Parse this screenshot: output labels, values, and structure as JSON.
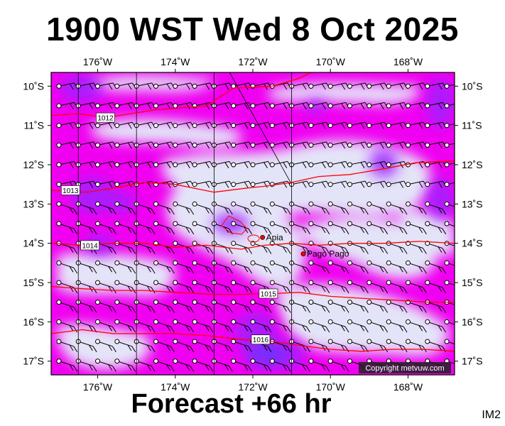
{
  "header": {
    "title": "1900 WST Wed 8 Oct 2025"
  },
  "footer": {
    "forecast": "Forecast +66 hr",
    "image_code": "IM2"
  },
  "map": {
    "lon_range": [
      -177.2,
      -166.8
    ],
    "lat_range": [
      -17.35,
      -9.65
    ],
    "lon_ticks": [
      {
        "value": -176,
        "label": "176˚W"
      },
      {
        "value": -174,
        "label": "174˚W"
      },
      {
        "value": -172,
        "label": "172˚W"
      },
      {
        "value": -170,
        "label": "170˚W"
      },
      {
        "value": -168,
        "label": "168˚W"
      }
    ],
    "lat_ticks": [
      {
        "value": -10,
        "label": "10˚S"
      },
      {
        "value": -11,
        "label": "11˚S"
      },
      {
        "value": -12,
        "label": "12˚S"
      },
      {
        "value": -13,
        "label": "13˚S"
      },
      {
        "value": -14,
        "label": "14˚S"
      },
      {
        "value": -15,
        "label": "15˚S"
      },
      {
        "value": -16,
        "label": "16˚S"
      },
      {
        "value": -17,
        "label": "17˚S"
      }
    ],
    "isobars": [
      {
        "label": "1012",
        "label_lon": -175.8,
        "label_lat": -10.8,
        "points": [
          [
            -177.2,
            -10.75
          ],
          [
            -176.5,
            -10.7
          ],
          [
            -175.8,
            -10.8
          ],
          [
            -174.5,
            -10.6
          ],
          [
            -173.2,
            -10.5
          ],
          [
            -172.5,
            -10.05
          ],
          [
            -171.5,
            -10.0
          ],
          [
            -170.8,
            -9.8
          ],
          [
            -170.5,
            -9.65
          ]
        ]
      },
      {
        "label": "1013",
        "label_lon": -176.7,
        "label_lat": -12.65,
        "points": [
          [
            -177.2,
            -12.65
          ],
          [
            -176.3,
            -12.7
          ],
          [
            -175.6,
            -12.6
          ],
          [
            -174.8,
            -12.45
          ],
          [
            -174.0,
            -12.5
          ],
          [
            -173.0,
            -12.7
          ],
          [
            -172.2,
            -12.6
          ],
          [
            -171.7,
            -12.55
          ],
          [
            -171.0,
            -12.45
          ],
          [
            -170.3,
            -12.3
          ],
          [
            -169.5,
            -12.25
          ],
          [
            -168.6,
            -12.1
          ],
          [
            -167.8,
            -11.95
          ],
          [
            -166.8,
            -11.9
          ]
        ]
      },
      {
        "label": "1014",
        "label_lon": -176.2,
        "label_lat": -14.05,
        "points": [
          [
            -177.2,
            -14.0
          ],
          [
            -176.4,
            -14.05
          ],
          [
            -175.6,
            -14.0
          ],
          [
            -174.8,
            -14.0
          ],
          [
            -174.0,
            -14.1
          ],
          [
            -173.2,
            -14.05
          ],
          [
            -172.3,
            -14.15
          ],
          [
            -171.7,
            -14.05
          ],
          [
            -171.0,
            -14.0
          ],
          [
            -170.3,
            -14.05
          ],
          [
            -169.5,
            -14.0
          ],
          [
            -168.6,
            -14.0
          ],
          [
            -167.7,
            -13.95
          ],
          [
            -166.8,
            -14.0
          ]
        ]
      },
      {
        "label": "1015",
        "label_lon": -171.6,
        "label_lat": -15.28,
        "points": [
          [
            -177.2,
            -15.1
          ],
          [
            -176.5,
            -15.15
          ],
          [
            -175.6,
            -15.2
          ],
          [
            -174.8,
            -15.2
          ],
          [
            -174.0,
            -15.25
          ],
          [
            -173.0,
            -15.3
          ],
          [
            -172.3,
            -15.3
          ],
          [
            -171.5,
            -15.28
          ],
          [
            -170.8,
            -15.25
          ],
          [
            -170.0,
            -15.35
          ],
          [
            -169.2,
            -15.4
          ],
          [
            -168.3,
            -15.45
          ],
          [
            -167.5,
            -15.5
          ],
          [
            -166.8,
            -15.5
          ]
        ]
      },
      {
        "label": "1016",
        "label_lon": -171.8,
        "label_lat": -16.45,
        "points": [
          [
            -177.2,
            -16.3
          ],
          [
            -176.4,
            -16.2
          ],
          [
            -175.6,
            -16.3
          ],
          [
            -174.8,
            -16.3
          ],
          [
            -174.0,
            -16.3
          ],
          [
            -173.2,
            -16.35
          ],
          [
            -172.3,
            -16.45
          ],
          [
            -171.5,
            -16.5
          ],
          [
            -170.8,
            -16.6
          ],
          [
            -170.0,
            -16.7
          ],
          [
            -169.2,
            -16.75
          ],
          [
            -168.4,
            -16.7
          ],
          [
            -167.6,
            -16.7
          ],
          [
            -166.8,
            -16.75
          ]
        ]
      }
    ],
    "places": [
      {
        "name": "Apia",
        "lon": -171.75,
        "lat": -13.85
      },
      {
        "name": "Pago Pago",
        "lon": -170.7,
        "lat": -14.27
      }
    ],
    "copyright": "Copyright metvuw.com",
    "colors": {
      "calm": "#e4e4f8",
      "moderate": "#f000f0",
      "strong": "#a020ff",
      "very_strong": "#7030ff",
      "isobar": "#ff0000",
      "grid": "#000000",
      "place": "#ff0000"
    }
  }
}
